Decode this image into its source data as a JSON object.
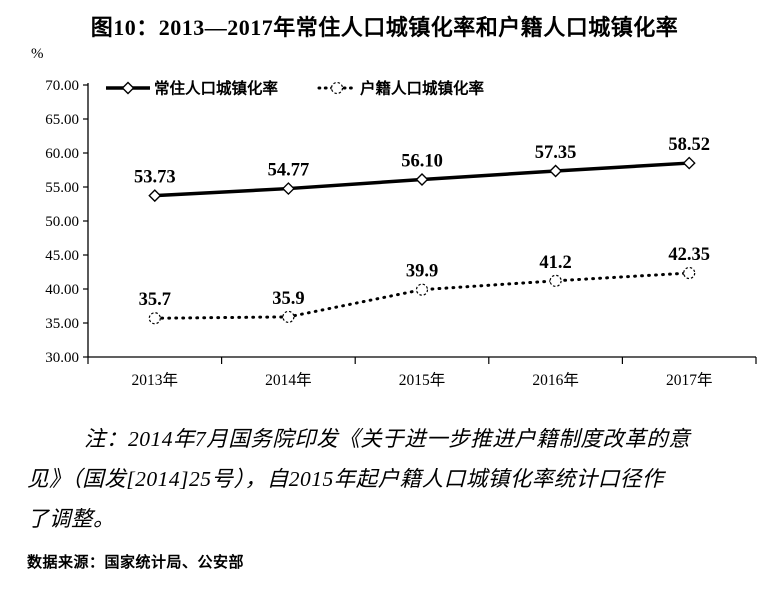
{
  "chart_data": {
    "type": "line",
    "title": "图10：2013—2017年常住人口城镇化率和户籍人口城镇化率",
    "categories": [
      "2013年",
      "2014年",
      "2015年",
      "2016年",
      "2017年"
    ],
    "series": [
      {
        "name": "常住人口城镇化率",
        "values": [
          53.73,
          54.77,
          56.1,
          57.35,
          58.52
        ],
        "data_labels": [
          "53.73",
          "54.77",
          "56.10",
          "57.35",
          "58.52"
        ],
        "line_style": "solid",
        "marker": "diamond",
        "color": "#000000"
      },
      {
        "name": "户籍人口城镇化率",
        "values": [
          35.7,
          35.9,
          39.9,
          41.2,
          42.35
        ],
        "data_labels": [
          "35.7",
          "35.9",
          "39.9",
          "41.2",
          "42.35"
        ],
        "line_style": "dotted",
        "marker": "circle",
        "color": "#000000"
      }
    ],
    "ylim": [
      30,
      70
    ],
    "ytick_step": 5,
    "ytick_labels": [
      "70.00",
      "65.00",
      "60.00",
      "55.00",
      "50.00",
      "45.00",
      "40.00",
      "35.00",
      "30.00"
    ],
    "ylabel": "%",
    "xlabel": "",
    "grid": false,
    "legend_position": "top-inside"
  },
  "note": {
    "lines": [
      "注：2014年7月国务院印发《关于进一步推进户籍制度改革的意",
      "见》（国发[2014]25号），自2015年起户籍人口城镇化率统计口径作",
      "了调整。"
    ]
  },
  "source": "数据来源：国家统计局、公安部",
  "colors": {
    "line": "#000000",
    "background": "#ffffff",
    "text": "#000000"
  }
}
